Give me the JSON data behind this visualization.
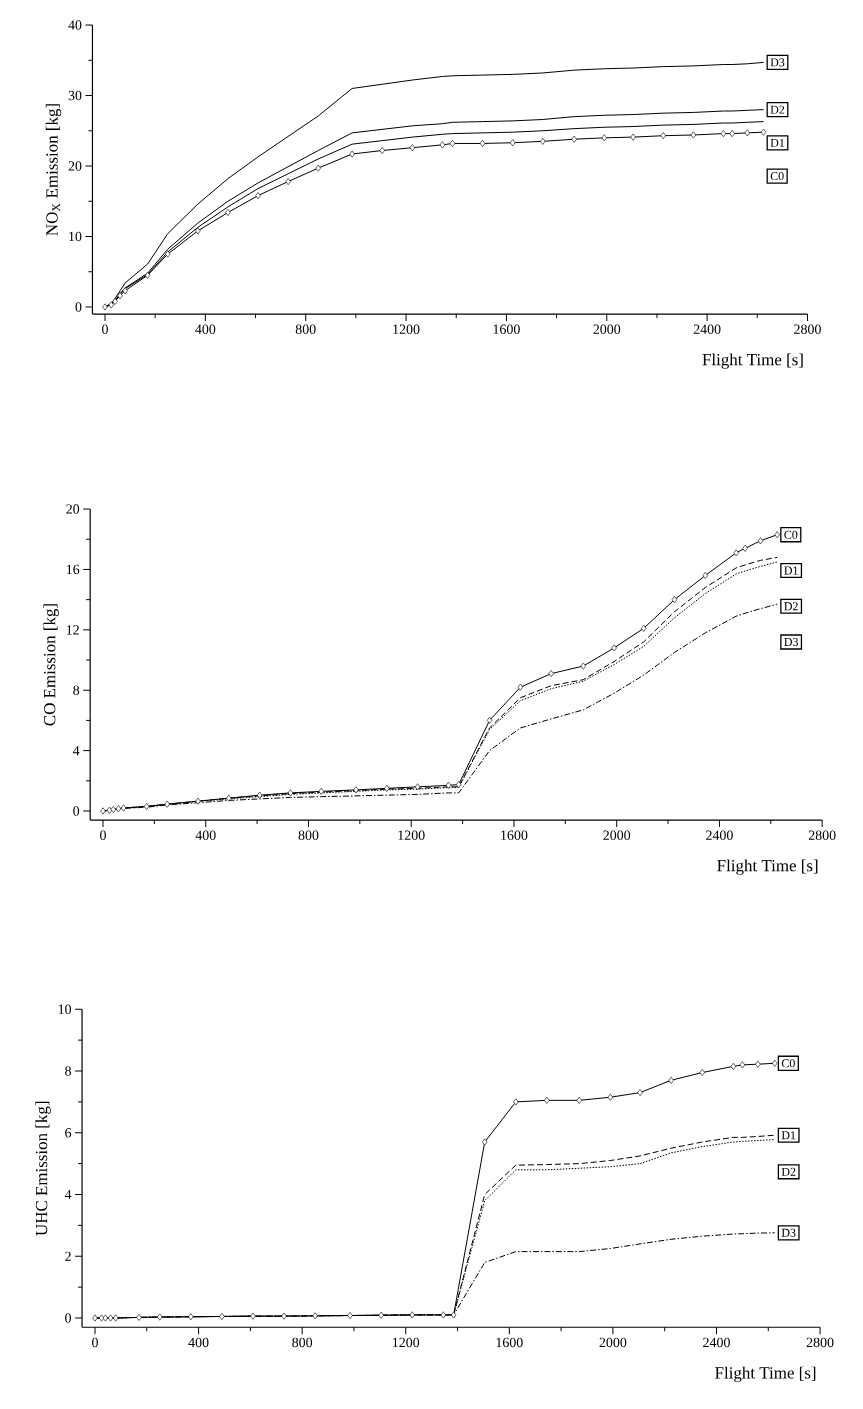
{
  "chart_data": [
    {
      "type": "line",
      "xlabel": "Flight Time [s]",
      "ylabel": "NO$_{X}$ Emission [kg]",
      "xlim": [
        -50,
        2800
      ],
      "ylim": [
        -1,
        40
      ],
      "xticks": [
        0,
        400,
        800,
        1200,
        1600,
        2000,
        2400,
        2800
      ],
      "yticks": [
        0,
        10,
        20,
        30,
        40
      ],
      "grid": false,
      "legend": false,
      "x": [
        0,
        25,
        40,
        60,
        80,
        170,
        250,
        370,
        490,
        610,
        730,
        850,
        985,
        1105,
        1225,
        1345,
        1385,
        1505,
        1625,
        1745,
        1870,
        1990,
        2105,
        2225,
        2345,
        2465,
        2500,
        2560,
        2625
      ],
      "series": [
        {
          "name": "C0",
          "color": "#000000",
          "line_style": "solid",
          "marker": "diamond",
          "values": [
            0,
            0.3,
            0.8,
            1.6,
            2.3,
            4.5,
            7.5,
            10.8,
            13.4,
            15.8,
            17.8,
            19.7,
            21.7,
            22.2,
            22.6,
            23.0,
            23.2,
            23.2,
            23.3,
            23.5,
            23.8,
            24.0,
            24.1,
            24.3,
            24.4,
            24.6,
            24.6,
            24.7,
            24.8
          ]
        },
        {
          "name": "D1",
          "color": "#000000",
          "line_style": "solid",
          "marker": "none",
          "values": [
            0,
            0.4,
            0.9,
            1.8,
            2.6,
            4.6,
            7.8,
            11.3,
            14.2,
            16.8,
            18.9,
            21.0,
            23.1,
            23.6,
            24.1,
            24.5,
            24.6,
            24.7,
            24.8,
            25.0,
            25.3,
            25.5,
            25.6,
            25.8,
            25.9,
            26.1,
            26.1,
            26.2,
            26.3
          ]
        },
        {
          "name": "D2",
          "color": "#000000",
          "line_style": "solid",
          "marker": "none",
          "values": [
            0,
            0.4,
            0.9,
            1.9,
            2.7,
            4.8,
            8.2,
            11.9,
            15.0,
            17.6,
            19.9,
            22.2,
            24.7,
            25.2,
            25.7,
            26.0,
            26.2,
            26.3,
            26.4,
            26.6,
            27.0,
            27.2,
            27.3,
            27.5,
            27.6,
            27.8,
            27.8,
            27.9,
            28.0
          ]
        },
        {
          "name": "D3",
          "color": "#000000",
          "line_style": "solid",
          "marker": "none",
          "values": [
            0,
            0.5,
            1.2,
            2.3,
            3.4,
            6.1,
            10.4,
            14.6,
            18.2,
            21.3,
            24.2,
            27.1,
            31.0,
            31.6,
            32.2,
            32.7,
            32.8,
            32.9,
            33.0,
            33.2,
            33.6,
            33.8,
            33.9,
            34.1,
            34.2,
            34.4,
            34.4,
            34.5,
            34.7
          ]
        }
      ]
    },
    {
      "type": "line",
      "xlabel": "Flight Time [s]",
      "ylabel": "CO Emission [kg]",
      "xlim": [
        -50,
        2800
      ],
      "ylim": [
        -0.6,
        20
      ],
      "xticks": [
        0,
        400,
        800,
        1200,
        1600,
        2000,
        2400,
        2800
      ],
      "yticks": [
        0,
        4,
        8,
        12,
        16,
        20
      ],
      "grid": false,
      "legend": false,
      "x": [
        0,
        25,
        40,
        60,
        80,
        170,
        250,
        370,
        490,
        610,
        730,
        850,
        985,
        1105,
        1225,
        1345,
        1385,
        1505,
        1625,
        1745,
        1870,
        1990,
        2105,
        2225,
        2345,
        2465,
        2500,
        2560,
        2625
      ],
      "series": [
        {
          "name": "C0",
          "color": "#000000",
          "line_style": "solid",
          "marker": "diamond",
          "values": [
            0,
            0.05,
            0.1,
            0.15,
            0.2,
            0.3,
            0.45,
            0.65,
            0.85,
            1.05,
            1.2,
            1.3,
            1.4,
            1.5,
            1.6,
            1.7,
            1.75,
            6.0,
            8.2,
            9.1,
            9.6,
            10.8,
            12.1,
            14.0,
            15.6,
            17.1,
            17.4,
            17.9,
            18.3
          ]
        },
        {
          "name": "D1",
          "color": "#000000",
          "line_style": "dashed",
          "marker": "none",
          "values": [
            0,
            0.05,
            0.1,
            0.15,
            0.2,
            0.3,
            0.45,
            0.65,
            0.85,
            1.0,
            1.15,
            1.25,
            1.35,
            1.45,
            1.5,
            1.6,
            1.6,
            5.5,
            7.5,
            8.3,
            8.7,
            9.9,
            11.2,
            13.2,
            14.8,
            16.1,
            16.3,
            16.6,
            16.8
          ]
        },
        {
          "name": "D2",
          "color": "#000000",
          "line_style": "dotted",
          "marker": "none",
          "values": [
            0,
            0.05,
            0.1,
            0.15,
            0.2,
            0.3,
            0.45,
            0.65,
            0.8,
            0.95,
            1.1,
            1.2,
            1.3,
            1.4,
            1.45,
            1.55,
            1.55,
            5.4,
            7.3,
            8.1,
            8.6,
            9.7,
            10.9,
            12.8,
            14.4,
            15.7,
            15.9,
            16.2,
            16.5
          ]
        },
        {
          "name": "D3",
          "color": "#000000",
          "line_style": "dashdot",
          "marker": "none",
          "values": [
            0,
            0.05,
            0.08,
            0.12,
            0.17,
            0.25,
            0.4,
            0.55,
            0.7,
            0.8,
            0.9,
            0.95,
            1.0,
            1.05,
            1.1,
            1.2,
            1.2,
            4.0,
            5.5,
            6.1,
            6.7,
            7.8,
            9.0,
            10.5,
            11.8,
            12.9,
            13.1,
            13.4,
            13.7
          ]
        }
      ]
    },
    {
      "type": "line",
      "xlabel": "Flight Time [s]",
      "ylabel": "UHC Emission [kg]",
      "xlim": [
        -50,
        2800
      ],
      "ylim": [
        -0.3,
        10
      ],
      "xticks": [
        0,
        400,
        800,
        1200,
        1600,
        2000,
        2400,
        2800
      ],
      "yticks": [
        0,
        2,
        4,
        6,
        8,
        10
      ],
      "grid": false,
      "legend": false,
      "x": [
        0,
        25,
        40,
        60,
        80,
        170,
        250,
        370,
        490,
        610,
        730,
        850,
        985,
        1105,
        1225,
        1345,
        1385,
        1505,
        1625,
        1745,
        1870,
        1990,
        2105,
        2225,
        2345,
        2465,
        2500,
        2560,
        2625
      ],
      "series": [
        {
          "name": "C0",
          "color": "#000000",
          "line_style": "solid",
          "marker": "diamond",
          "values": [
            0,
            0,
            0,
            0,
            0,
            0.02,
            0.03,
            0.04,
            0.05,
            0.06,
            0.06,
            0.07,
            0.08,
            0.09,
            0.1,
            0.1,
            0.1,
            5.7,
            7.0,
            7.05,
            7.05,
            7.15,
            7.3,
            7.7,
            7.95,
            8.15,
            8.2,
            8.22,
            8.25
          ]
        },
        {
          "name": "D1",
          "color": "#000000",
          "line_style": "dashed",
          "marker": "none",
          "values": [
            0,
            0,
            0,
            0,
            0,
            0.02,
            0.03,
            0.04,
            0.05,
            0.06,
            0.06,
            0.07,
            0.08,
            0.09,
            0.1,
            0.1,
            0.1,
            4.0,
            4.95,
            4.97,
            5.0,
            5.1,
            5.25,
            5.5,
            5.7,
            5.85,
            5.85,
            5.88,
            5.92
          ]
        },
        {
          "name": "D2",
          "color": "#000000",
          "line_style": "dotted",
          "marker": "none",
          "values": [
            0,
            0,
            0,
            0,
            0,
            0.02,
            0.03,
            0.04,
            0.05,
            0.06,
            0.06,
            0.07,
            0.08,
            0.09,
            0.1,
            0.1,
            0.1,
            3.8,
            4.8,
            4.8,
            4.85,
            4.9,
            5.0,
            5.35,
            5.55,
            5.7,
            5.72,
            5.75,
            5.78
          ]
        },
        {
          "name": "D3",
          "color": "#000000",
          "line_style": "dashdot",
          "marker": "none",
          "values": [
            0,
            0,
            0,
            0,
            0,
            0.02,
            0.03,
            0.04,
            0.05,
            0.06,
            0.06,
            0.07,
            0.08,
            0.09,
            0.1,
            0.1,
            0.1,
            1.8,
            2.15,
            2.15,
            2.15,
            2.25,
            2.4,
            2.55,
            2.65,
            2.72,
            2.73,
            2.75,
            2.76
          ]
        }
      ]
    }
  ]
}
